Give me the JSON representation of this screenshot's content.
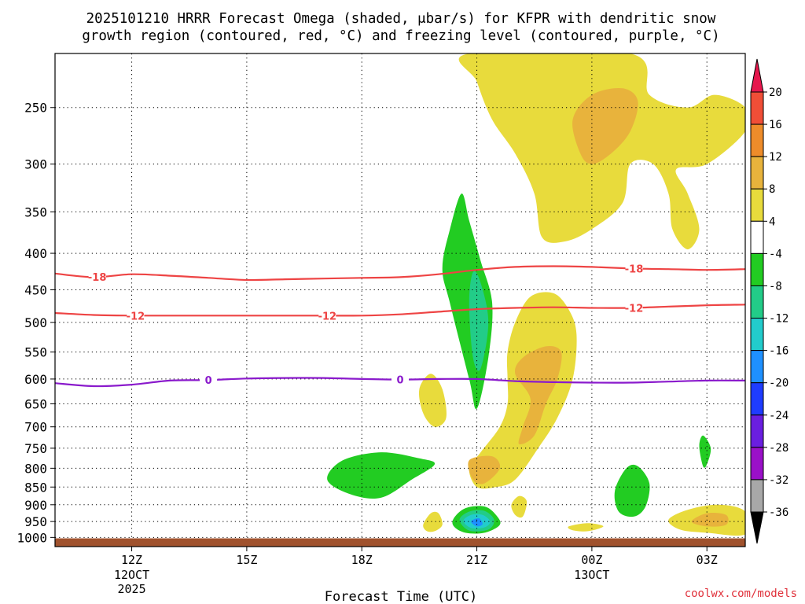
{
  "chart_data": {
    "type": "contour",
    "title_line1": "2025101210 HRRR Forecast Omega (shaded, μbar/s) for KFPR with dendritic snow",
    "title_line2": "growth region (contoured, red, °C) and freezing level (contoured, purple, °C)",
    "xlabel": "Forecast Time (UTC)",
    "credit": "coolwx.com/models",
    "y_axis": {
      "scale": "log-pressure",
      "range": [
        1030,
        210
      ],
      "ticks": [
        250,
        300,
        350,
        400,
        450,
        500,
        550,
        600,
        650,
        700,
        750,
        800,
        850,
        900,
        950,
        1000
      ],
      "grid": "dotted"
    },
    "x_axis": {
      "range_hours": [
        10,
        28
      ],
      "ticks": [
        {
          "h": 12,
          "label": "12Z",
          "sub1": "12OCT",
          "sub2": "2025"
        },
        {
          "h": 15,
          "label": "15Z",
          "sub1": "",
          "sub2": ""
        },
        {
          "h": 18,
          "label": "18Z",
          "sub1": "",
          "sub2": ""
        },
        {
          "h": 21,
          "label": "21Z",
          "sub1": "",
          "sub2": ""
        },
        {
          "h": 24,
          "label": "00Z",
          "sub1": "13OCT",
          "sub2": ""
        },
        {
          "h": 27,
          "label": "03Z",
          "sub1": "",
          "sub2": ""
        }
      ]
    },
    "colorbar": {
      "levels": [
        20,
        16,
        12,
        8,
        4,
        -4,
        -8,
        -12,
        -16,
        -20,
        -24,
        -28,
        -32,
        -36
      ],
      "colors": [
        "#e6174d",
        "#f04e37",
        "#ee8c2a",
        "#e8b33c",
        "#e8db3c",
        "#ffffff",
        "#22cc22",
        "#22cc88",
        "#22cccc",
        "#1e90ff",
        "#1e3cff",
        "#6a1ee0",
        "#9a10c8",
        "#a8a8a8",
        "#000000"
      ]
    },
    "contours": [
      {
        "label": "-18",
        "color": "#ee4444",
        "points": [
          [
            10,
            427
          ],
          [
            11,
            432
          ],
          [
            12,
            428
          ],
          [
            13,
            430
          ],
          [
            14,
            433
          ],
          [
            15,
            436
          ],
          [
            16,
            435
          ],
          [
            17,
            434
          ],
          [
            18,
            433
          ],
          [
            19,
            432
          ],
          [
            20,
            428
          ],
          [
            21,
            422
          ],
          [
            22,
            418
          ],
          [
            23,
            417
          ],
          [
            24,
            418
          ],
          [
            25,
            420
          ],
          [
            26,
            421
          ],
          [
            27,
            422
          ],
          [
            28,
            421
          ]
        ],
        "label_at": [
          11.1,
          25.1
        ]
      },
      {
        "label": "-12",
        "color": "#ee4444",
        "points": [
          [
            10,
            485
          ],
          [
            11,
            488
          ],
          [
            12,
            489
          ],
          [
            13,
            489
          ],
          [
            14,
            489
          ],
          [
            15,
            489
          ],
          [
            16,
            489
          ],
          [
            17,
            489
          ],
          [
            18,
            489
          ],
          [
            19,
            487
          ],
          [
            20,
            483
          ],
          [
            21,
            479
          ],
          [
            22,
            477
          ],
          [
            23,
            476
          ],
          [
            24,
            477
          ],
          [
            25,
            477
          ],
          [
            26,
            475
          ],
          [
            27,
            473
          ],
          [
            28,
            472
          ]
        ],
        "label_at": [
          12.1,
          17.1,
          25.1
        ]
      },
      {
        "label": "0",
        "color": "#8a1acc",
        "points": [
          [
            10,
            608
          ],
          [
            11,
            614
          ],
          [
            12,
            611
          ],
          [
            13,
            603
          ],
          [
            14,
            602
          ],
          [
            15,
            599
          ],
          [
            16,
            598
          ],
          [
            17,
            598
          ],
          [
            18,
            600
          ],
          [
            19,
            601
          ],
          [
            20,
            600
          ],
          [
            21,
            600
          ],
          [
            22,
            604
          ],
          [
            23,
            606
          ],
          [
            24,
            607
          ],
          [
            25,
            607
          ],
          [
            26,
            605
          ],
          [
            27,
            603
          ],
          [
            28,
            603
          ]
        ],
        "label_at": [
          14,
          19
        ]
      }
    ],
    "shaded_regions": [
      {
        "value": 4,
        "shape": "upper-ridge",
        "points": [
          [
            20.8,
            210
          ],
          [
            21,
            230
          ],
          [
            21.4,
            260
          ],
          [
            22,
            290
          ],
          [
            22.5,
            330
          ],
          [
            22.7,
            380
          ],
          [
            23.3,
            385
          ],
          [
            24,
            370
          ],
          [
            24.8,
            340
          ],
          [
            25,
            300
          ],
          [
            25.6,
            300
          ],
          [
            26.0,
            330
          ],
          [
            26.1,
            370
          ],
          [
            26.5,
            395
          ],
          [
            26.8,
            370
          ],
          [
            26.5,
            330
          ],
          [
            26.2,
            305
          ],
          [
            27,
            300
          ],
          [
            28,
            270
          ],
          [
            28,
            250
          ],
          [
            27.2,
            240
          ],
          [
            26.5,
            250
          ],
          [
            25.5,
            240
          ],
          [
            25,
            210
          ]
        ]
      },
      {
        "value": 8,
        "points": [
          [
            23.5,
            260
          ],
          [
            24,
            240
          ],
          [
            24.8,
            235
          ],
          [
            25.2,
            245
          ],
          [
            25,
            270
          ],
          [
            24.5,
            290
          ],
          [
            24,
            300
          ],
          [
            23.7,
            290
          ]
        ]
      },
      {
        "value": 4,
        "points": [
          [
            21.8,
            600
          ],
          [
            21.8,
            550
          ],
          [
            22,
            500
          ],
          [
            22.4,
            460
          ],
          [
            23,
            455
          ],
          [
            23.4,
            480
          ],
          [
            23.6,
            520
          ],
          [
            23.5,
            600
          ],
          [
            23.1,
            680
          ],
          [
            22.6,
            750
          ],
          [
            22,
            830
          ],
          [
            21.5,
            850
          ],
          [
            21,
            850
          ],
          [
            20.8,
            800
          ],
          [
            21.1,
            760
          ],
          [
            21.6,
            700
          ],
          [
            21.8,
            650
          ]
        ]
      },
      {
        "value": 8,
        "points": [
          [
            22.0,
            590
          ],
          [
            22.2,
            560
          ],
          [
            22.8,
            540
          ],
          [
            23.2,
            550
          ],
          [
            23.1,
            600
          ],
          [
            22.8,
            650
          ],
          [
            22.5,
            720
          ],
          [
            22.1,
            740
          ],
          [
            22.2,
            700
          ],
          [
            22.4,
            640
          ]
        ]
      },
      {
        "value": 8,
        "points": [
          [
            20.8,
            780
          ],
          [
            21.4,
            770
          ],
          [
            21.6,
            800
          ],
          [
            21.2,
            840
          ],
          [
            20.9,
            830
          ]
        ]
      },
      {
        "value": -4,
        "points": [
          [
            20.6,
            330
          ],
          [
            20.8,
            360
          ],
          [
            21.1,
            410
          ],
          [
            21.4,
            470
          ],
          [
            21.3,
            560
          ],
          [
            21,
            660
          ],
          [
            20.8,
            600
          ],
          [
            20.3,
            470
          ],
          [
            20.1,
            420
          ],
          [
            20.3,
            370
          ]
        ]
      },
      {
        "value": -8,
        "points": [
          [
            20.9,
            425
          ],
          [
            21.1,
            440
          ],
          [
            21.3,
            500
          ],
          [
            21.1,
            580
          ],
          [
            20.9,
            560
          ],
          [
            20.8,
            470
          ]
        ]
      },
      {
        "value": -4,
        "points": [
          [
            17.1,
            830
          ],
          [
            17.5,
            780
          ],
          [
            18.5,
            760
          ],
          [
            19.5,
            775
          ],
          [
            19.9,
            790
          ],
          [
            19.3,
            830
          ],
          [
            18.5,
            880
          ],
          [
            17.7,
            870
          ]
        ]
      },
      {
        "value": -4,
        "points": [
          [
            20.4,
            940
          ],
          [
            20.7,
            910
          ],
          [
            21.2,
            905
          ],
          [
            21.5,
            930
          ],
          [
            21.6,
            960
          ],
          [
            21.2,
            985
          ],
          [
            20.7,
            985
          ],
          [
            20.4,
            965
          ]
        ]
      },
      {
        "value": -8,
        "points": [
          [
            20.55,
            945
          ],
          [
            20.8,
            920
          ],
          [
            21.2,
            918
          ],
          [
            21.45,
            945
          ],
          [
            21.3,
            975
          ],
          [
            20.8,
            978
          ]
        ]
      },
      {
        "value": -12,
        "points": [
          [
            20.65,
            948
          ],
          [
            20.85,
            930
          ],
          [
            21.15,
            930
          ],
          [
            21.35,
            950
          ],
          [
            21.2,
            968
          ],
          [
            20.85,
            970
          ]
        ]
      },
      {
        "value": -16,
        "points": [
          [
            20.85,
            950
          ],
          [
            21.05,
            940
          ],
          [
            21.15,
            958
          ],
          [
            21.0,
            965
          ]
        ]
      },
      {
        "value": 4,
        "points": [
          [
            19.6,
            960
          ],
          [
            19.8,
            925
          ],
          [
            20.0,
            925
          ],
          [
            20.1,
            960
          ],
          [
            19.9,
            980
          ],
          [
            19.7,
            980
          ]
        ]
      },
      {
        "value": 4,
        "points": [
          [
            19.5,
            620
          ],
          [
            19.8,
            590
          ],
          [
            20.1,
            620
          ],
          [
            20.2,
            680
          ],
          [
            19.9,
            700
          ],
          [
            19.6,
            670
          ]
        ]
      },
      {
        "value": 4,
        "points": [
          [
            21.9,
            900
          ],
          [
            22.1,
            875
          ],
          [
            22.3,
            890
          ],
          [
            22.2,
            935
          ],
          [
            22.0,
            930
          ]
        ]
      },
      {
        "value": 4,
        "points": [
          [
            23.4,
            965
          ],
          [
            23.9,
            955
          ],
          [
            24.3,
            965
          ],
          [
            23.9,
            980
          ],
          [
            23.5,
            977
          ]
        ]
      },
      {
        "value": 4,
        "points": [
          [
            26.0,
            945
          ],
          [
            26.5,
            915
          ],
          [
            27.3,
            900
          ],
          [
            28,
            920
          ],
          [
            28,
            990
          ],
          [
            27.0,
            985
          ],
          [
            26.3,
            975
          ]
        ]
      },
      {
        "value": 8,
        "points": [
          [
            26.6,
            950
          ],
          [
            27.0,
            925
          ],
          [
            27.5,
            930
          ],
          [
            27.5,
            960
          ],
          [
            27.0,
            965
          ]
        ]
      },
      {
        "value": -4,
        "points": [
          [
            24.6,
            860
          ],
          [
            24.9,
            800
          ],
          [
            25.2,
            795
          ],
          [
            25.5,
            840
          ],
          [
            25.4,
            905
          ],
          [
            25.1,
            935
          ],
          [
            24.7,
            920
          ]
        ]
      },
      {
        "value": -4,
        "points": [
          [
            26.8,
            745
          ],
          [
            26.9,
            720
          ],
          [
            27.1,
            750
          ],
          [
            27.0,
            790
          ],
          [
            26.9,
            795
          ]
        ]
      }
    ]
  }
}
